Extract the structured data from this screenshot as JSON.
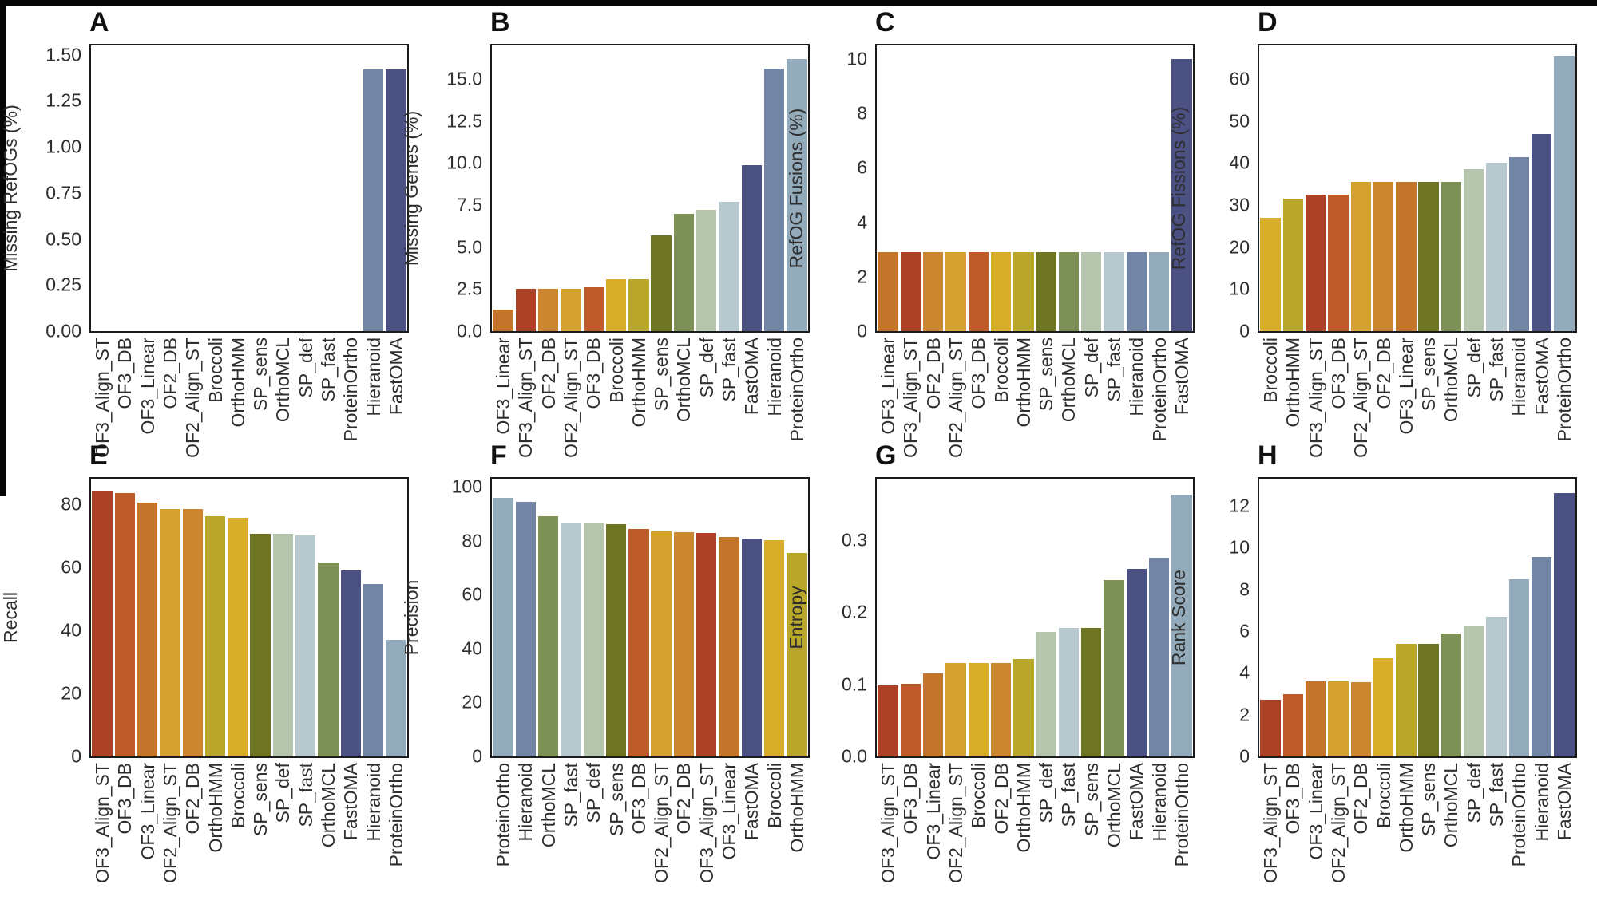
{
  "page": {
    "background": "#ffffff",
    "frame_color": "#060606"
  },
  "tool_colors": {
    "OF3_Align_ST": "#ac4128",
    "OF3_DB": "#bf5b28",
    "OF3_Linear": "#c4752c",
    "OF2_DB": "#cc8630",
    "OF2_Align_ST": "#d4a02e",
    "Broccoli": "#d7ad2a",
    "OrthoHMM": "#b9a72c",
    "SP_sens": "#6e7522",
    "OrthoMCL": "#7d9055",
    "SP_def": "#b5c5ae",
    "SP_fast": "#b7c8cf",
    "Hieranoid": "#7385a5",
    "ProteinOrtho": "#92aaba",
    "FastOMA": "#4c5184"
  },
  "chart_data": [
    {
      "panel": "A",
      "type": "bar",
      "ylabel": "Missing RefOGs (%)",
      "ylim": [
        0,
        1.55
      ],
      "tick_labels": [
        "0.00",
        "0.25",
        "0.50",
        "0.75",
        "1.00",
        "1.25",
        "1.50"
      ],
      "tick_values": [
        0,
        0.25,
        0.5,
        0.75,
        1.0,
        1.25,
        1.5
      ],
      "categories": [
        "OF3_Align_ST",
        "OF3_DB",
        "OF3_Linear",
        "OF2_DB",
        "OF2_Align_ST",
        "Broccoli",
        "OrthoHMM",
        "SP_sens",
        "OrthoMCL",
        "SP_def",
        "SP_fast",
        "ProteinOrtho",
        "Hieranoid",
        "FastOMA"
      ],
      "values": [
        0,
        0,
        0,
        0,
        0,
        0,
        0,
        0,
        0,
        0,
        0,
        0,
        1.42,
        1.42
      ]
    },
    {
      "panel": "B",
      "type": "bar",
      "ylabel": "Missing Genes (%)",
      "ylim": [
        0,
        17
      ],
      "tick_labels": [
        "0.0",
        "2.5",
        "5.0",
        "7.5",
        "10.0",
        "12.5",
        "15.0"
      ],
      "tick_values": [
        0,
        2.5,
        5,
        7.5,
        10,
        12.5,
        15
      ],
      "categories": [
        "OF3_Linear",
        "OF3_Align_ST",
        "OF2_DB",
        "OF2_Align_ST",
        "OF3_DB",
        "Broccoli",
        "OrthoHMM",
        "SP_sens",
        "OrthoMCL",
        "SP_def",
        "SP_fast",
        "FastOMA",
        "Hieranoid",
        "ProteinOrtho"
      ],
      "values": [
        1.3,
        2.5,
        2.5,
        2.5,
        2.6,
        3.1,
        3.1,
        5.7,
        7.0,
        7.2,
        7.7,
        9.9,
        15.6,
        16.2
      ]
    },
    {
      "panel": "C",
      "type": "bar",
      "ylabel": "RefOG Fusions (%)",
      "ylim": [
        0,
        10.5
      ],
      "tick_labels": [
        "0",
        "2",
        "4",
        "6",
        "8",
        "10"
      ],
      "tick_values": [
        0,
        2,
        4,
        6,
        8,
        10
      ],
      "categories": [
        "OF3_Linear",
        "OF3_Align_ST",
        "OF2_DB",
        "OF2_Align_ST",
        "OF3_DB",
        "Broccoli",
        "OrthoHMM",
        "SP_sens",
        "OrthoMCL",
        "SP_def",
        "SP_fast",
        "Hieranoid",
        "ProteinOrtho",
        "FastOMA"
      ],
      "values": [
        2.9,
        2.9,
        2.9,
        2.9,
        2.9,
        2.9,
        2.9,
        2.9,
        2.9,
        2.9,
        2.9,
        2.9,
        2.9,
        10.0
      ]
    },
    {
      "panel": "D",
      "type": "bar",
      "ylabel": "RefOG Fissions (%)",
      "ylim": [
        0,
        68
      ],
      "tick_labels": [
        "0",
        "10",
        "20",
        "30",
        "40",
        "50",
        "60"
      ],
      "tick_values": [
        0,
        10,
        20,
        30,
        40,
        50,
        60
      ],
      "categories": [
        "Broccoli",
        "OrthoHMM",
        "OF3_Align_ST",
        "OF3_DB",
        "OF2_Align_ST",
        "OF2_DB",
        "OF3_Linear",
        "SP_sens",
        "OrthoMCL",
        "SP_def",
        "SP_fast",
        "Hieranoid",
        "FastOMA",
        "ProteinOrtho"
      ],
      "values": [
        27,
        31.5,
        32.5,
        32.5,
        35.5,
        35.5,
        35.5,
        35.5,
        35.5,
        38.5,
        40,
        41.5,
        47,
        65.5
      ]
    },
    {
      "panel": "E",
      "type": "bar",
      "ylabel": "Recall",
      "ylim": [
        0,
        88
      ],
      "tick_labels": [
        "0",
        "20",
        "40",
        "60",
        "80"
      ],
      "tick_values": [
        0,
        20,
        40,
        60,
        80
      ],
      "categories": [
        "OF3_Align_ST",
        "OF3_DB",
        "OF3_Linear",
        "OF2_Align_ST",
        "OF2_DB",
        "OrthoHMM",
        "Broccoli",
        "SP_sens",
        "SP_def",
        "SP_fast",
        "OrthoMCL",
        "FastOMA",
        "Hieranoid",
        "ProteinOrtho"
      ],
      "values": [
        84,
        83.5,
        80.5,
        78.5,
        78.5,
        76,
        75.5,
        70.5,
        70.5,
        70,
        61.5,
        59,
        54.5,
        37
      ]
    },
    {
      "panel": "F",
      "type": "bar",
      "ylabel": "Precision",
      "ylim": [
        0,
        103
      ],
      "tick_labels": [
        "0",
        "20",
        "40",
        "60",
        "80",
        "100"
      ],
      "tick_values": [
        0,
        20,
        40,
        60,
        80,
        100
      ],
      "categories": [
        "ProteinOrtho",
        "Hieranoid",
        "OrthoMCL",
        "SP_fast",
        "SP_def",
        "SP_sens",
        "OF3_DB",
        "OF2_Align_ST",
        "OF2_DB",
        "OF3_Align_ST",
        "OF3_Linear",
        "FastOMA",
        "Broccoli",
        "OrthoHMM"
      ],
      "values": [
        96,
        94.5,
        89,
        86.5,
        86.3,
        86,
        84.5,
        83.5,
        83.3,
        83,
        81.5,
        80.8,
        80.3,
        75.5
      ]
    },
    {
      "panel": "G",
      "type": "bar",
      "ylabel": "Entropy",
      "ylim": [
        0,
        0.385
      ],
      "tick_labels": [
        "0.0",
        "0.1",
        "0.2",
        "0.3"
      ],
      "tick_values": [
        0,
        0.1,
        0.2,
        0.3
      ],
      "categories": [
        "OF3_Align_ST",
        "OF3_DB",
        "OF3_Linear",
        "OF2_Align_ST",
        "Broccoli",
        "OF2_DB",
        "OrthoHMM",
        "SP_def",
        "SP_fast",
        "SP_sens",
        "OrthoMCL",
        "FastOMA",
        "Hieranoid",
        "ProteinOrtho"
      ],
      "values": [
        0.098,
        0.101,
        0.115,
        0.13,
        0.13,
        0.13,
        0.135,
        0.173,
        0.178,
        0.178,
        0.245,
        0.26,
        0.275,
        0.363
      ]
    },
    {
      "panel": "H",
      "type": "bar",
      "ylabel": "Rank Score",
      "ylim": [
        0,
        13.3
      ],
      "tick_labels": [
        "0",
        "2",
        "4",
        "6",
        "8",
        "10",
        "12"
      ],
      "tick_values": [
        0,
        2,
        4,
        6,
        8,
        10,
        12
      ],
      "categories": [
        "OF3_Align_ST",
        "OF3_DB",
        "OF3_Linear",
        "OF2_Align_ST",
        "OF2_DB",
        "Broccoli",
        "OrthoHMM",
        "SP_sens",
        "OrthoMCL",
        "SP_def",
        "SP_fast",
        "ProteinOrtho",
        "Hieranoid",
        "FastOMA"
      ],
      "values": [
        2.7,
        3.0,
        3.6,
        3.6,
        3.55,
        4.7,
        5.4,
        5.4,
        5.9,
        6.25,
        6.7,
        8.5,
        9.55,
        12.6
      ]
    }
  ]
}
